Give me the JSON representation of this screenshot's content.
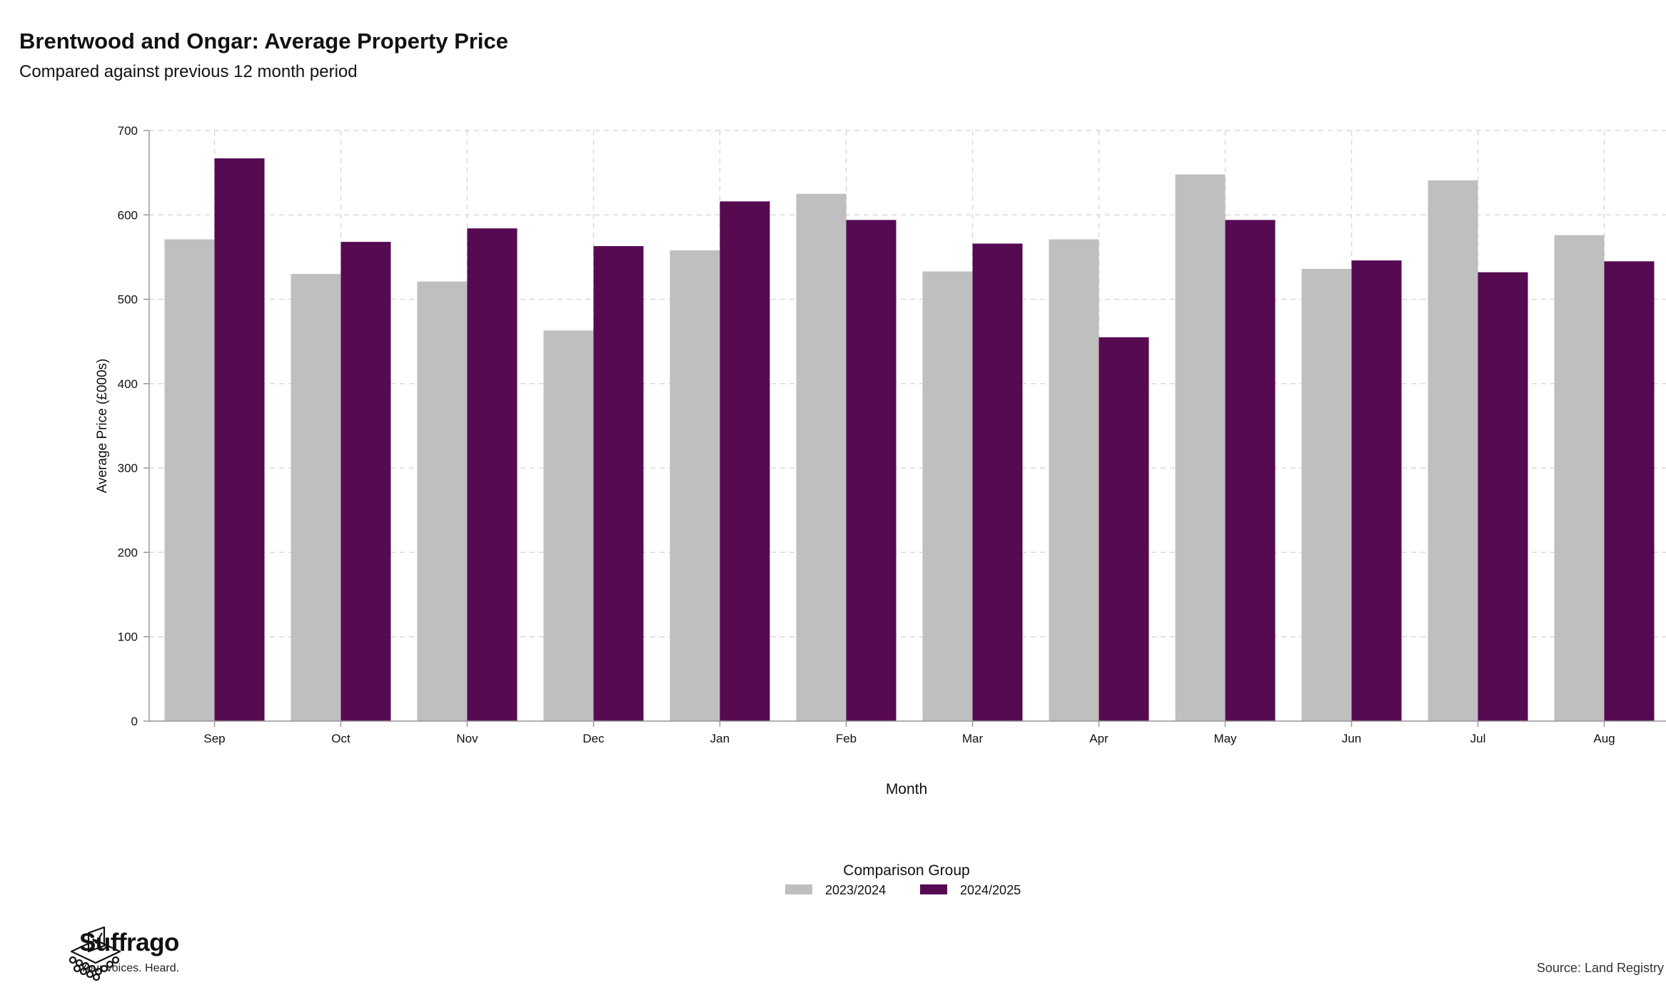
{
  "header": {
    "title": "Brentwood and Ongar: Average Property Price",
    "subtitle": "Compared against previous 12 month period"
  },
  "footer": {
    "brand_name": "Suffrago",
    "brand_tagline": "Your voices. Heard.",
    "source": "Source: Land Registry"
  },
  "chart_data": {
    "type": "bar",
    "title": "Brentwood and Ongar: Average Property Price",
    "subtitle": "Compared against previous 12 month period",
    "xlabel": "Month",
    "ylabel": "Average Price (£000s)",
    "ylim": [
      0,
      700
    ],
    "yticks": [
      0,
      100,
      200,
      300,
      400,
      500,
      600,
      700
    ],
    "grid": true,
    "legend_title": "Comparison Group",
    "legend_position": "bottom-center",
    "categories": [
      "Sep",
      "Oct",
      "Nov",
      "Dec",
      "Jan",
      "Feb",
      "Mar",
      "Apr",
      "May",
      "Jun",
      "Jul",
      "Aug"
    ],
    "series": [
      {
        "name": "2023/2024",
        "color": "#bfbfbf",
        "values": [
          571,
          530,
          521,
          463,
          558,
          625,
          533,
          571,
          648,
          536,
          641,
          576
        ]
      },
      {
        "name": "2024/2025",
        "color": "#560a52",
        "values": [
          667,
          568,
          584,
          563,
          616,
          594,
          566,
          455,
          594,
          546,
          532,
          545
        ]
      }
    ]
  }
}
